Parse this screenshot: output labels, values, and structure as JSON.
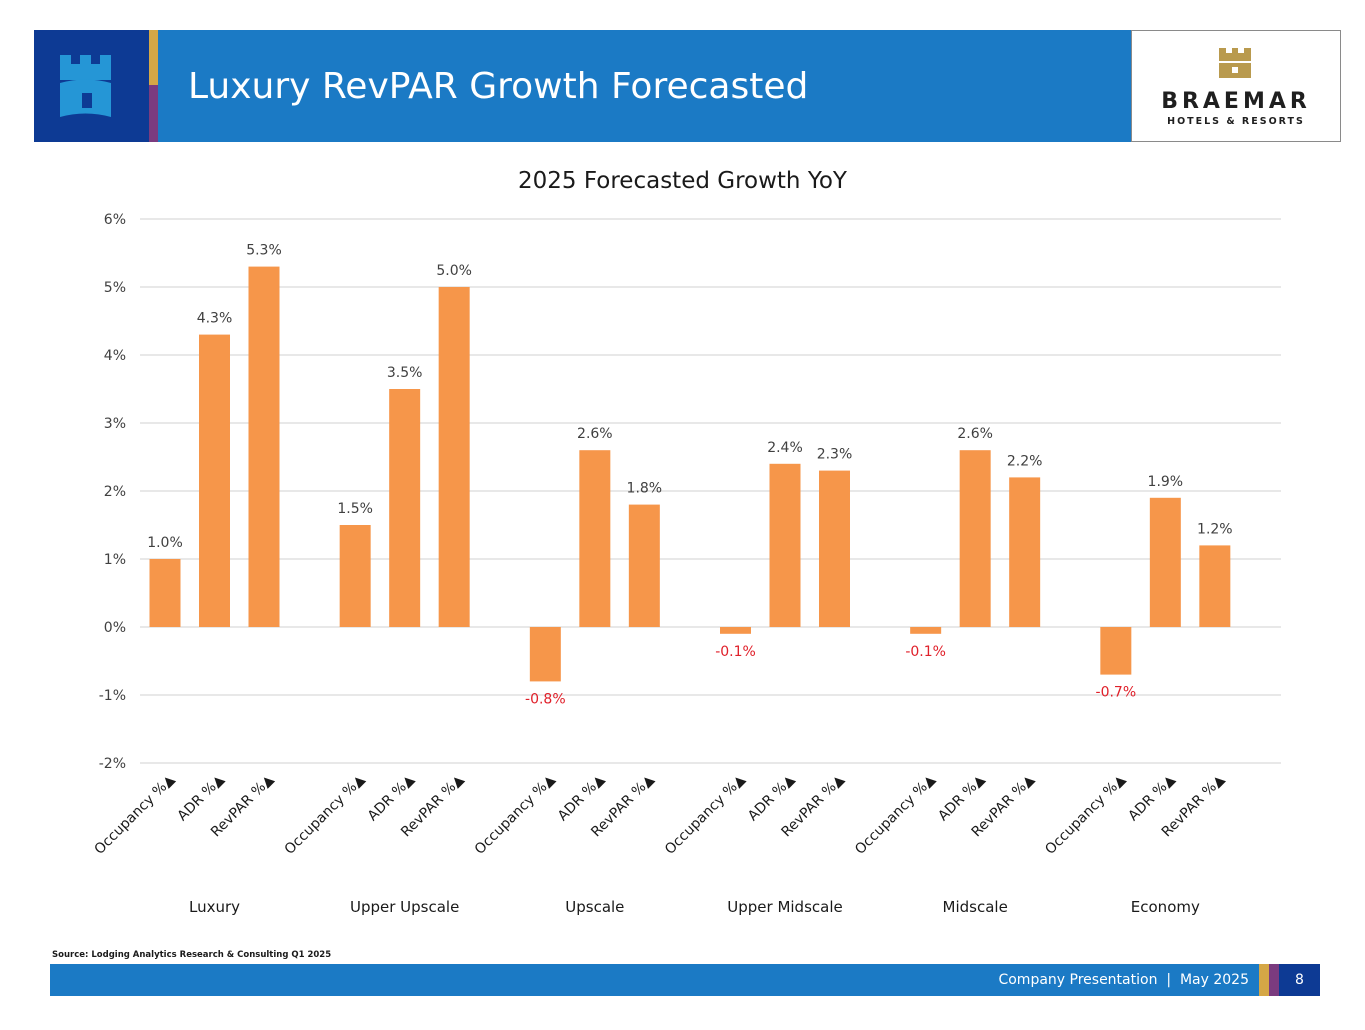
{
  "header": {
    "title": "Luxury RevPAR Growth Forecasted",
    "brand_name": "BRAEMAR",
    "brand_tagline": "HOTELS & RESORTS",
    "logo_icon": "castle-tower-icon"
  },
  "colors": {
    "navy": "#0d3a94",
    "blue": "#1b7ac5",
    "gold": "#d5a746",
    "purple": "#7b3b7f",
    "bar": "#f6964a",
    "negative_label": "#e0202a",
    "gridline": "#d9d9d9"
  },
  "chart_data": {
    "type": "bar",
    "title": "2025 Forecasted Growth YoY",
    "xlabel": "",
    "ylabel": "",
    "ylim": [
      -2,
      6
    ],
    "yticks": [
      -2,
      -1,
      0,
      1,
      2,
      3,
      4,
      5,
      6
    ],
    "ytick_labels": [
      "-2%",
      "-1%",
      "0%",
      "1%",
      "2%",
      "3%",
      "4%",
      "5%",
      "6%"
    ],
    "grid": true,
    "legend": "none",
    "groups": [
      {
        "name": "Luxury",
        "categories": [
          "Occupancy %▲",
          "ADR %▲",
          "RevPAR %▲"
        ],
        "values": [
          1.0,
          4.3,
          5.3
        ],
        "labels": [
          "1.0%",
          "4.3%",
          "5.3%"
        ]
      },
      {
        "name": "Upper Upscale",
        "categories": [
          "Occupancy %▲",
          "ADR %▲",
          "RevPAR %▲"
        ],
        "values": [
          1.5,
          3.5,
          5.0
        ],
        "labels": [
          "1.5%",
          "3.5%",
          "5.0%"
        ]
      },
      {
        "name": "Upscale",
        "categories": [
          "Occupancy %▲",
          "ADR %▲",
          "RevPAR %▲"
        ],
        "values": [
          -0.8,
          2.6,
          1.8
        ],
        "labels": [
          "-0.8%",
          "2.6%",
          "1.8%"
        ]
      },
      {
        "name": "Upper Midscale",
        "categories": [
          "Occupancy %▲",
          "ADR %▲",
          "RevPAR %▲"
        ],
        "values": [
          -0.1,
          2.4,
          2.3
        ],
        "labels": [
          "-0.1%",
          "2.4%",
          "2.3%"
        ]
      },
      {
        "name": "Midscale",
        "categories": [
          "Occupancy %▲",
          "ADR %▲",
          "RevPAR %▲"
        ],
        "values": [
          -0.1,
          2.6,
          2.2
        ],
        "labels": [
          "-0.1%",
          "2.6%",
          "2.2%"
        ]
      },
      {
        "name": "Economy",
        "categories": [
          "Occupancy %▲",
          "ADR %▲",
          "RevPAR %▲"
        ],
        "values": [
          -0.7,
          1.9,
          1.2
        ],
        "labels": [
          "-0.7%",
          "1.9%",
          "1.2%"
        ]
      }
    ]
  },
  "source_note": "Source: Lodging Analytics Research & Consulting Q1 2025",
  "footer": {
    "text": "Company Presentation  |  May 2025",
    "page_number": "8"
  }
}
